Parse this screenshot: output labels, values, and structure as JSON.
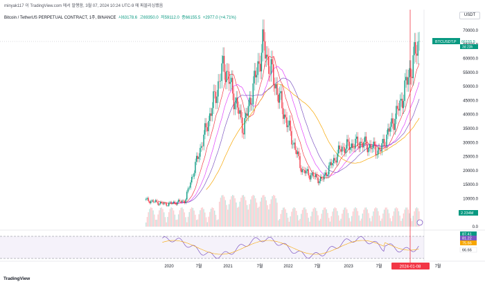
{
  "header": {
    "author_line": "minyak117 이 TradingView.com 에서 발행함, 3월 07, 2024 10:24 UTC-9 에 퍼블리싱했음",
    "symbol": "Bitcoin / TetherUS PERPETUAL CONTRACT, 1주, BINANCE",
    "ohlc": {
      "o": "시63178.6",
      "h": "고69350.0",
      "l": "저59112.0",
      "c": "종66155.5",
      "change": "+2977.0 (+4.71%)"
    }
  },
  "currency": "USDT",
  "price_axis": {
    "ticks": [
      "70000.0",
      "65000.0",
      "60000.0",
      "55000.0",
      "50000.0",
      "45000.0",
      "40000.0",
      "35000.0",
      "30000.0",
      "25000.0",
      "20000.0",
      "15000.0",
      "10000.0",
      "5000.0",
      "0.0"
    ],
    "last_price_label": "BTCUSDT.P",
    "last_price": "66155.5",
    "countdown": "3d 23h",
    "volume_label": "2.234M",
    "accent_color": "#089981",
    "down_color": "#f23645"
  },
  "rsi_axis": {
    "value_1": "87.41",
    "value_2": "81.22",
    "value_3": "75.66",
    "value_4": "66.66"
  },
  "time_axis": {
    "ticks": [
      "2020",
      "7월",
      "2021",
      "7월",
      "2022",
      "7월",
      "2023",
      "7월",
      "7월"
    ],
    "cursor_label": "2024-01-08"
  },
  "chart_data": {
    "type": "candlestick",
    "x": [
      "2019-09",
      "2020-01",
      "2020-07",
      "2021-01",
      "2021-04",
      "2021-07",
      "2021-11",
      "2022-01",
      "2022-06",
      "2022-11",
      "2023-03",
      "2023-07",
      "2023-10",
      "2024-01",
      "2024-03"
    ],
    "close": [
      9500,
      8000,
      9200,
      33000,
      58000,
      35000,
      65000,
      42000,
      20000,
      16500,
      28000,
      30000,
      27000,
      43000,
      66155.5
    ],
    "ylim": [
      0,
      70000
    ]
  },
  "brand": "TradingView"
}
